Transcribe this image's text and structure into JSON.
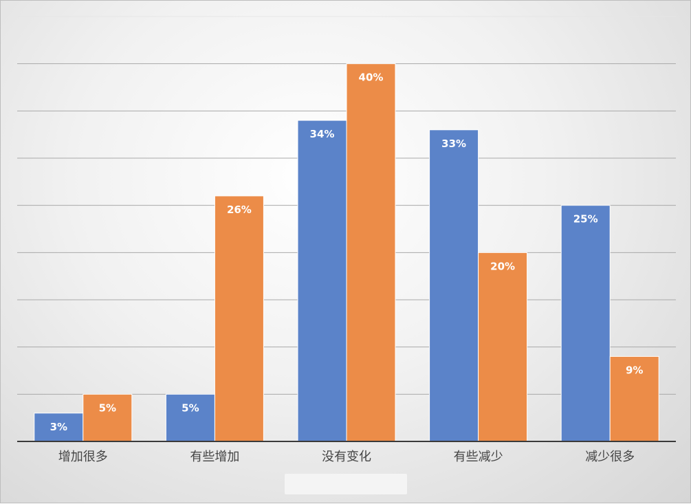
{
  "chart_data": {
    "type": "bar",
    "title": "",
    "xlabel": "",
    "ylabel": "",
    "categories": [
      "增加很多",
      "有些增加",
      "没有变化",
      "有些减少",
      "减少很多"
    ],
    "series": [
      {
        "color": "#5b83c9",
        "values": [
          3,
          5,
          34,
          33,
          25
        ],
        "labels": [
          "3%",
          "5%",
          "34%",
          "33%",
          "25%"
        ]
      },
      {
        "color": "#ec8c48",
        "values": [
          5,
          26,
          40,
          20,
          9
        ],
        "labels": [
          "5%",
          "26%",
          "40%",
          "20%",
          "9%"
        ]
      }
    ],
    "ylim": [
      0,
      45
    ],
    "gridlines": true,
    "grid_step": 5,
    "legend": "bottom"
  }
}
